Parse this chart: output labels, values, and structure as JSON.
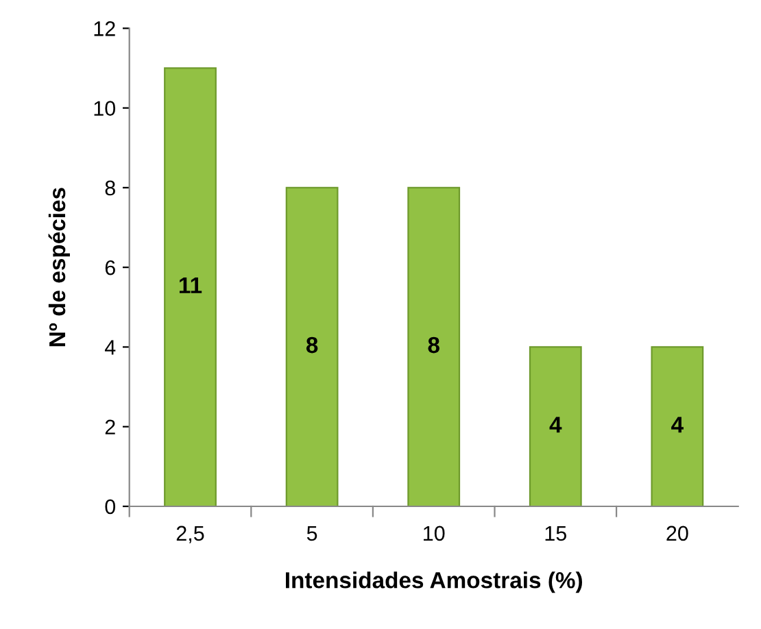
{
  "chart_data": {
    "type": "bar",
    "xlabel": "Intensidades Amostrais (%)",
    "ylabel": "Nº de espécies",
    "categories": [
      "2,5",
      "5",
      "10",
      "15",
      "20"
    ],
    "values": [
      11,
      8,
      8,
      4,
      4
    ],
    "color": "#92c144",
    "ylim": [
      0,
      12
    ],
    "yticks": [
      0,
      2,
      4,
      6,
      8,
      10,
      12
    ],
    "data_labels": true,
    "grid": false,
    "legend": false
  }
}
